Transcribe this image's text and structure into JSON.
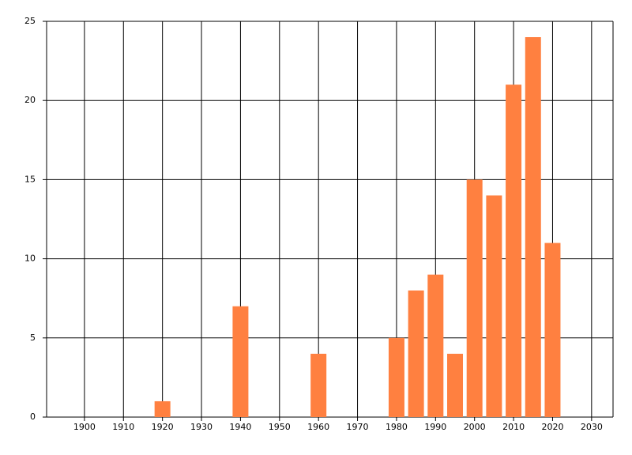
{
  "chart_data": {
    "type": "bar",
    "x": [
      1920,
      1940,
      1960,
      1980,
      1985,
      1990,
      1995,
      2000,
      2005,
      2010,
      2015,
      2020
    ],
    "values": [
      1,
      7,
      4,
      5,
      8,
      9,
      4,
      15,
      14,
      21,
      24,
      11
    ],
    "color": "#ff8040",
    "xlim": [
      1890.3,
      2035.5
    ],
    "xticks": [
      1900,
      1910,
      1920,
      1930,
      1940,
      1950,
      1960,
      1970,
      1980,
      1990,
      2000,
      2010,
      2020,
      2030
    ],
    "ylim": [
      0,
      25
    ],
    "yticks": [
      0,
      5,
      10,
      15,
      20,
      25
    ],
    "grid": true
  }
}
